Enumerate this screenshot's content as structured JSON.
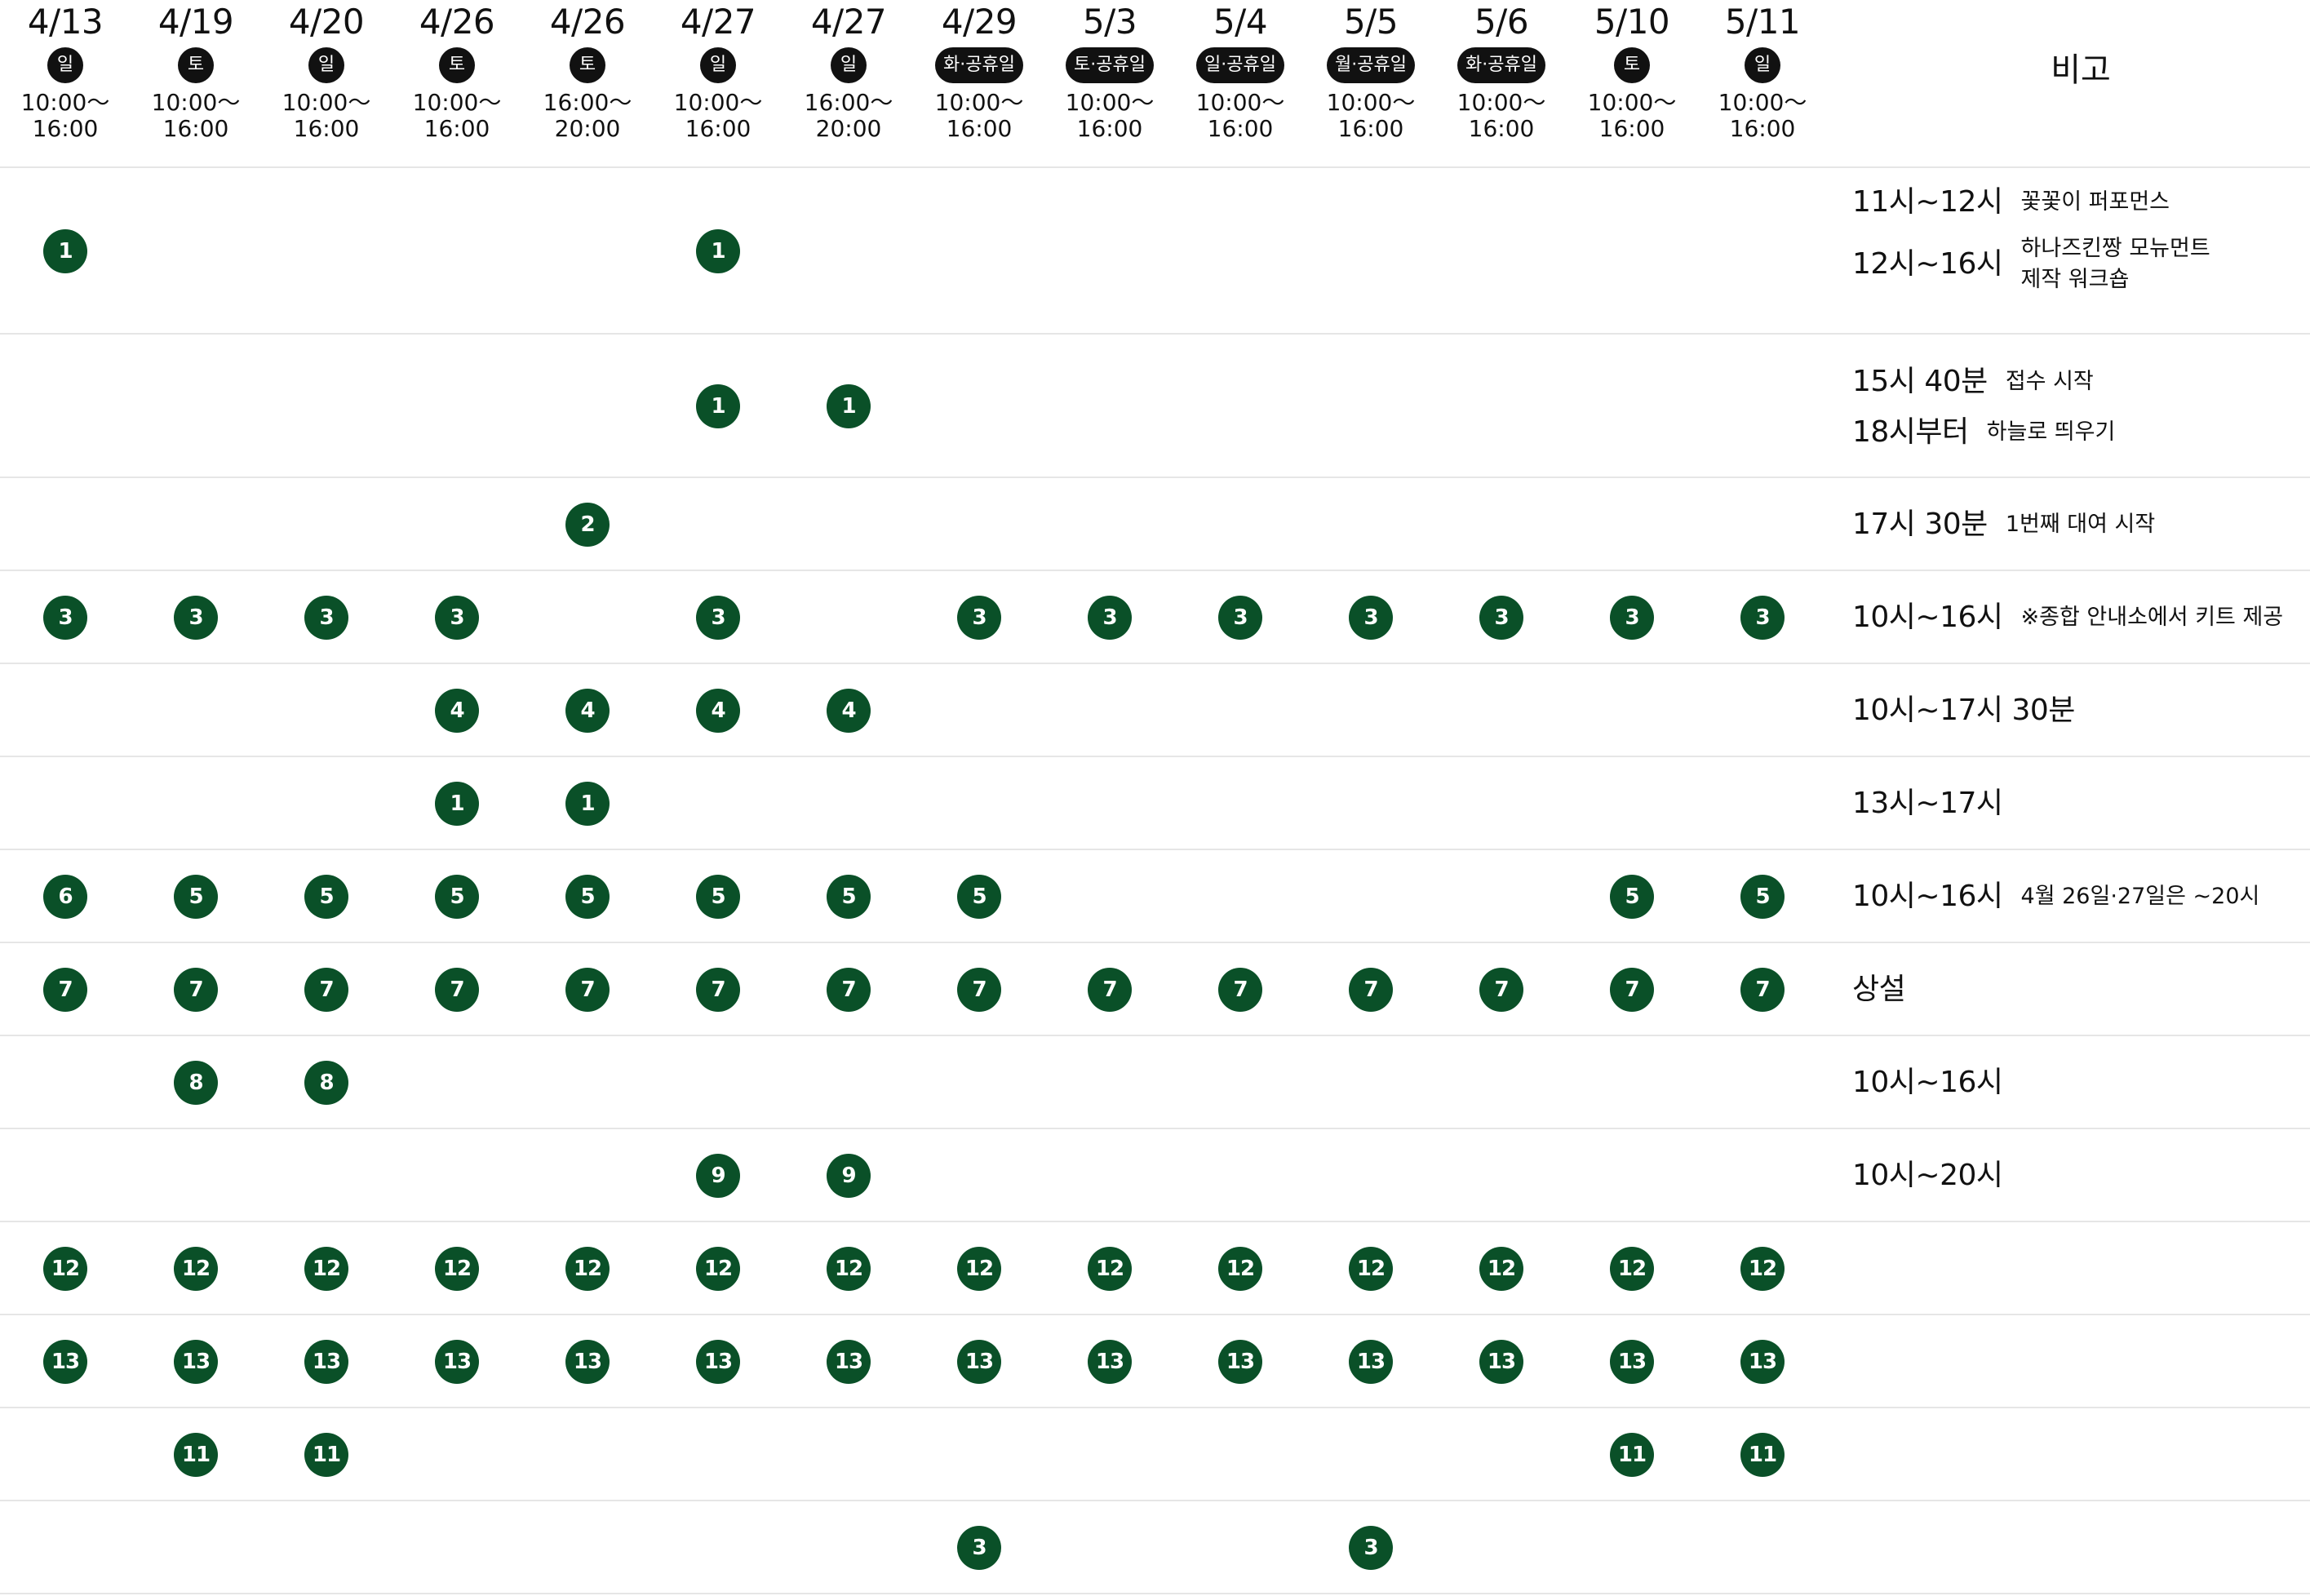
{
  "header": {
    "dates": [
      {
        "date": "4/13",
        "day": "일",
        "time_start": "10:00〜",
        "time_end": "16:00"
      },
      {
        "date": "4/19",
        "day": "토",
        "time_start": "10:00〜",
        "time_end": "16:00"
      },
      {
        "date": "4/20",
        "day": "일",
        "time_start": "10:00〜",
        "time_end": "16:00"
      },
      {
        "date": "4/26",
        "day": "토",
        "time_start": "10:00〜",
        "time_end": "16:00"
      },
      {
        "date": "4/26",
        "day": "토",
        "time_start": "16:00〜",
        "time_end": "20:00"
      },
      {
        "date": "4/27",
        "day": "일",
        "time_start": "10:00〜",
        "time_end": "16:00"
      },
      {
        "date": "4/27",
        "day": "일",
        "time_start": "16:00〜",
        "time_end": "20:00"
      },
      {
        "date": "4/29",
        "day": "화·공휴일",
        "time_start": "10:00〜",
        "time_end": "16:00"
      },
      {
        "date": "5/3",
        "day": "토·공휴일",
        "time_start": "10:00〜",
        "time_end": "16:00"
      },
      {
        "date": "5/4",
        "day": "일·공휴일",
        "time_start": "10:00〜",
        "time_end": "16:00"
      },
      {
        "date": "5/5",
        "day": "월·공휴일",
        "time_start": "10:00〜",
        "time_end": "16:00"
      },
      {
        "date": "5/6",
        "day": "화·공휴일",
        "time_start": "10:00〜",
        "time_end": "16:00"
      },
      {
        "date": "5/10",
        "day": "토",
        "time_start": "10:00〜",
        "time_end": "16:00"
      },
      {
        "date": "5/11",
        "day": "일",
        "time_start": "10:00〜",
        "time_end": "16:00"
      }
    ],
    "note_header": "비고"
  },
  "rows": [
    {
      "markers": [
        {
          "col": 0,
          "label": "1"
        },
        {
          "col": 5,
          "label": "1"
        }
      ],
      "notes": [
        {
          "time": "11시~12시",
          "desc": [
            "꽃꽃이 퍼포먼스"
          ]
        },
        {
          "time": "12시~16시",
          "desc": [
            "하나즈킨짱 모뉴먼트",
            "제작 워크숍"
          ]
        }
      ]
    },
    {
      "markers": [
        {
          "col": 5,
          "label": "1"
        },
        {
          "col": 6,
          "label": "1"
        }
      ],
      "notes": [
        {
          "time": "15시 40분",
          "desc": [
            "접수 시작"
          ]
        },
        {
          "time": "18시부터",
          "desc": [
            "하늘로 띄우기"
          ]
        }
      ]
    },
    {
      "markers": [
        {
          "col": 4,
          "label": "2"
        }
      ],
      "notes": [
        {
          "time": "17시 30분",
          "desc": [
            "1번째 대여 시작"
          ]
        }
      ]
    },
    {
      "markers": [
        {
          "col": 0,
          "label": "3"
        },
        {
          "col": 1,
          "label": "3"
        },
        {
          "col": 2,
          "label": "3"
        },
        {
          "col": 3,
          "label": "3"
        },
        {
          "col": 5,
          "label": "3"
        },
        {
          "col": 7,
          "label": "3"
        },
        {
          "col": 8,
          "label": "3"
        },
        {
          "col": 9,
          "label": "3"
        },
        {
          "col": 10,
          "label": "3"
        },
        {
          "col": 11,
          "label": "3"
        },
        {
          "col": 12,
          "label": "3"
        },
        {
          "col": 13,
          "label": "3"
        }
      ],
      "notes": [
        {
          "time": "10시~16시",
          "desc": [
            "※종합 안내소에서 키트 제공"
          ]
        }
      ]
    },
    {
      "markers": [
        {
          "col": 3,
          "label": "4"
        },
        {
          "col": 4,
          "label": "4"
        },
        {
          "col": 5,
          "label": "4"
        },
        {
          "col": 6,
          "label": "4"
        }
      ],
      "notes": [
        {
          "time": "10시~17시 30분",
          "desc": []
        }
      ]
    },
    {
      "markers": [
        {
          "col": 3,
          "label": "1"
        },
        {
          "col": 4,
          "label": "1"
        }
      ],
      "notes": [
        {
          "time": "13시~17시",
          "desc": []
        }
      ]
    },
    {
      "markers": [
        {
          "col": 0,
          "label": "6"
        },
        {
          "col": 1,
          "label": "5"
        },
        {
          "col": 2,
          "label": "5"
        },
        {
          "col": 3,
          "label": "5"
        },
        {
          "col": 4,
          "label": "5"
        },
        {
          "col": 5,
          "label": "5"
        },
        {
          "col": 6,
          "label": "5"
        },
        {
          "col": 7,
          "label": "5"
        },
        {
          "col": 12,
          "label": "5"
        },
        {
          "col": 13,
          "label": "5"
        }
      ],
      "notes": [
        {
          "time": "10시~16시",
          "desc": [
            "4월 26일·27일은 ~20시"
          ]
        }
      ]
    },
    {
      "markers": [
        {
          "col": 0,
          "label": "7"
        },
        {
          "col": 1,
          "label": "7"
        },
        {
          "col": 2,
          "label": "7"
        },
        {
          "col": 3,
          "label": "7"
        },
        {
          "col": 4,
          "label": "7"
        },
        {
          "col": 5,
          "label": "7"
        },
        {
          "col": 6,
          "label": "7"
        },
        {
          "col": 7,
          "label": "7"
        },
        {
          "col": 8,
          "label": "7"
        },
        {
          "col": 9,
          "label": "7"
        },
        {
          "col": 10,
          "label": "7"
        },
        {
          "col": 11,
          "label": "7"
        },
        {
          "col": 12,
          "label": "7"
        },
        {
          "col": 13,
          "label": "7"
        }
      ],
      "notes": [
        {
          "time": "상설",
          "desc": []
        }
      ]
    },
    {
      "markers": [
        {
          "col": 1,
          "label": "8"
        },
        {
          "col": 2,
          "label": "8"
        }
      ],
      "notes": [
        {
          "time": "10시~16시",
          "desc": []
        }
      ]
    },
    {
      "markers": [
        {
          "col": 5,
          "label": "9"
        },
        {
          "col": 6,
          "label": "9"
        }
      ],
      "notes": [
        {
          "time": "10시~20시",
          "desc": []
        }
      ]
    },
    {
      "markers": [
        {
          "col": 0,
          "label": "12"
        },
        {
          "col": 1,
          "label": "12"
        },
        {
          "col": 2,
          "label": "12"
        },
        {
          "col": 3,
          "label": "12"
        },
        {
          "col": 4,
          "label": "12"
        },
        {
          "col": 5,
          "label": "12"
        },
        {
          "col": 6,
          "label": "12"
        },
        {
          "col": 7,
          "label": "12"
        },
        {
          "col": 8,
          "label": "12"
        },
        {
          "col": 9,
          "label": "12"
        },
        {
          "col": 10,
          "label": "12"
        },
        {
          "col": 11,
          "label": "12"
        },
        {
          "col": 12,
          "label": "12"
        },
        {
          "col": 13,
          "label": "12"
        }
      ],
      "notes": []
    },
    {
      "markers": [
        {
          "col": 0,
          "label": "13"
        },
        {
          "col": 1,
          "label": "13"
        },
        {
          "col": 2,
          "label": "13"
        },
        {
          "col": 3,
          "label": "13"
        },
        {
          "col": 4,
          "label": "13"
        },
        {
          "col": 5,
          "label": "13"
        },
        {
          "col": 6,
          "label": "13"
        },
        {
          "col": 7,
          "label": "13"
        },
        {
          "col": 8,
          "label": "13"
        },
        {
          "col": 9,
          "label": "13"
        },
        {
          "col": 10,
          "label": "13"
        },
        {
          "col": 11,
          "label": "13"
        },
        {
          "col": 12,
          "label": "13"
        },
        {
          "col": 13,
          "label": "13"
        }
      ],
      "notes": []
    },
    {
      "markers": [
        {
          "col": 1,
          "label": "11"
        },
        {
          "col": 2,
          "label": "11"
        },
        {
          "col": 12,
          "label": "11"
        },
        {
          "col": 13,
          "label": "11"
        }
      ],
      "notes": []
    },
    {
      "markers": [
        {
          "col": 7,
          "label": "3"
        },
        {
          "col": 10,
          "label": "3"
        }
      ],
      "notes": []
    }
  ],
  "colors": {
    "marker_fill": "#0a5028",
    "marker_text": "#ffffff",
    "day_pill_fill": "#111111",
    "divider": "#e6e6e6"
  }
}
